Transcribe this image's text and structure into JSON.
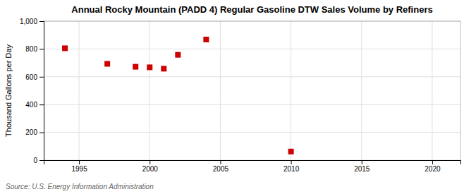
{
  "chart_data": {
    "type": "scatter",
    "title": "Annual Rocky Mountain (PADD 4) Regular Gasoline DTW Sales Volume by Refiners",
    "ylabel": "Thousand Gallons per Day",
    "source": "Source: U.S. Energy Information Administration",
    "x": [
      1994,
      1997,
      1999,
      2000,
      2001,
      2002,
      2004,
      2010
    ],
    "values": [
      805,
      693,
      672,
      668,
      658,
      758,
      868,
      62
    ],
    "color": "#cc0000",
    "marker": "square",
    "xlim": [
      1992.5,
      2022
    ],
    "ylim": [
      0,
      1000
    ],
    "xticks": [
      1995,
      2000,
      2005,
      2010,
      2015,
      2020
    ],
    "yticks": [
      0,
      200,
      400,
      600,
      800,
      {
        "value": 1000,
        "label": "1,000"
      }
    ],
    "grid": true
  }
}
